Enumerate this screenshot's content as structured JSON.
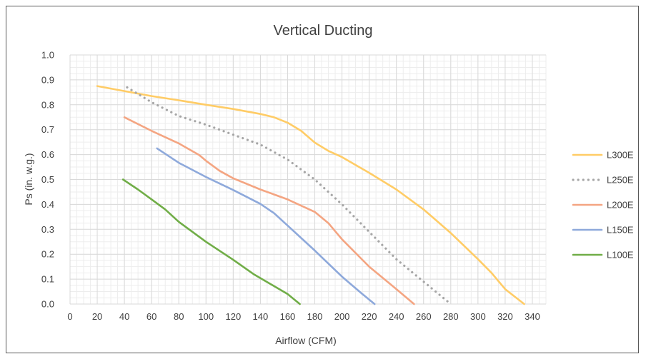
{
  "chart_data": {
    "type": "line",
    "title": "Vertical Ducting",
    "xlabel": "Airflow (CFM)",
    "ylabel": "Ps (in. w.g.)",
    "xlim": [
      0,
      350
    ],
    "ylim": [
      0,
      1.0
    ],
    "x_ticks": [
      0,
      20,
      40,
      60,
      80,
      100,
      120,
      140,
      160,
      180,
      200,
      220,
      240,
      260,
      280,
      300,
      320,
      340
    ],
    "y_ticks": [
      "0.0",
      "0.1",
      "0.2",
      "0.3",
      "0.4",
      "0.5",
      "0.6",
      "0.7",
      "0.8",
      "0.9",
      "1.0"
    ],
    "grid": true,
    "legend_position": "right",
    "series": [
      {
        "name": "L300E",
        "color": "#FFCC66",
        "dash": "solid",
        "points": [
          [
            20,
            0.875
          ],
          [
            40,
            0.855
          ],
          [
            60,
            0.835
          ],
          [
            80,
            0.818
          ],
          [
            100,
            0.8
          ],
          [
            120,
            0.783
          ],
          [
            140,
            0.763
          ],
          [
            150,
            0.75
          ],
          [
            160,
            0.728
          ],
          [
            170,
            0.695
          ],
          [
            180,
            0.648
          ],
          [
            190,
            0.615
          ],
          [
            200,
            0.59
          ],
          [
            220,
            0.527
          ],
          [
            240,
            0.46
          ],
          [
            260,
            0.38
          ],
          [
            280,
            0.285
          ],
          [
            300,
            0.18
          ],
          [
            310,
            0.125
          ],
          [
            320,
            0.06
          ],
          [
            334,
            0.0
          ]
        ]
      },
      {
        "name": "L250E",
        "color": "#A6A6A6",
        "dash": "dotted",
        "points": [
          [
            42,
            0.87
          ],
          [
            60,
            0.81
          ],
          [
            80,
            0.755
          ],
          [
            100,
            0.72
          ],
          [
            120,
            0.68
          ],
          [
            140,
            0.64
          ],
          [
            160,
            0.58
          ],
          [
            180,
            0.5
          ],
          [
            200,
            0.4
          ],
          [
            220,
            0.29
          ],
          [
            240,
            0.18
          ],
          [
            260,
            0.09
          ],
          [
            280,
            0.0
          ]
        ]
      },
      {
        "name": "L200E",
        "color": "#F4A582",
        "dash": "solid",
        "points": [
          [
            40,
            0.75
          ],
          [
            60,
            0.695
          ],
          [
            80,
            0.645
          ],
          [
            95,
            0.598
          ],
          [
            100,
            0.575
          ],
          [
            110,
            0.535
          ],
          [
            120,
            0.505
          ],
          [
            140,
            0.46
          ],
          [
            160,
            0.42
          ],
          [
            180,
            0.37
          ],
          [
            190,
            0.325
          ],
          [
            200,
            0.26
          ],
          [
            220,
            0.15
          ],
          [
            240,
            0.06
          ],
          [
            253,
            0.0
          ]
        ]
      },
      {
        "name": "L150E",
        "color": "#8EA9DB",
        "dash": "solid",
        "points": [
          [
            64,
            0.625
          ],
          [
            80,
            0.567
          ],
          [
            100,
            0.51
          ],
          [
            120,
            0.458
          ],
          [
            140,
            0.402
          ],
          [
            150,
            0.365
          ],
          [
            160,
            0.315
          ],
          [
            180,
            0.215
          ],
          [
            200,
            0.11
          ],
          [
            215,
            0.04
          ],
          [
            224,
            0.0
          ]
        ]
      },
      {
        "name": "L100E",
        "color": "#70AD47",
        "dash": "solid",
        "points": [
          [
            39,
            0.5
          ],
          [
            50,
            0.46
          ],
          [
            60,
            0.42
          ],
          [
            70,
            0.38
          ],
          [
            80,
            0.33
          ],
          [
            100,
            0.25
          ],
          [
            120,
            0.178
          ],
          [
            135,
            0.12
          ],
          [
            160,
            0.04
          ],
          [
            169,
            0.0
          ]
        ]
      }
    ]
  }
}
